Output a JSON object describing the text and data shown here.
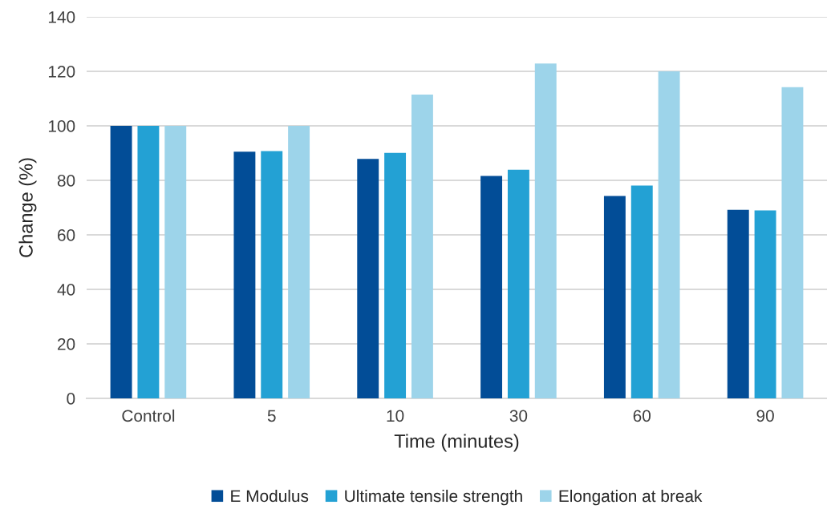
{
  "chart_data": {
    "type": "bar",
    "xlabel": "Time (minutes)",
    "ylabel": "Change (%)",
    "categories": [
      "Control",
      "5",
      "10",
      "30",
      "60",
      "90"
    ],
    "series": [
      {
        "name": "E Modulus",
        "color": "#024d97",
        "values": [
          100,
          90.5,
          87.9,
          81.6,
          74.3,
          69.2
        ]
      },
      {
        "name": "Ultimate tensile strength",
        "color": "#23a1d4",
        "values": [
          100,
          90.7,
          90.1,
          83.9,
          78.1,
          69.0
        ]
      },
      {
        "name": "Elongation at break",
        "color": "#9dd4ea",
        "values": [
          100,
          100,
          111.5,
          122.9,
          120,
          114.2
        ]
      }
    ],
    "ylim": [
      0,
      140
    ],
    "yticks": [
      0,
      20,
      40,
      60,
      80,
      100,
      120,
      140
    ],
    "grid": "y",
    "legend": "bottom"
  }
}
